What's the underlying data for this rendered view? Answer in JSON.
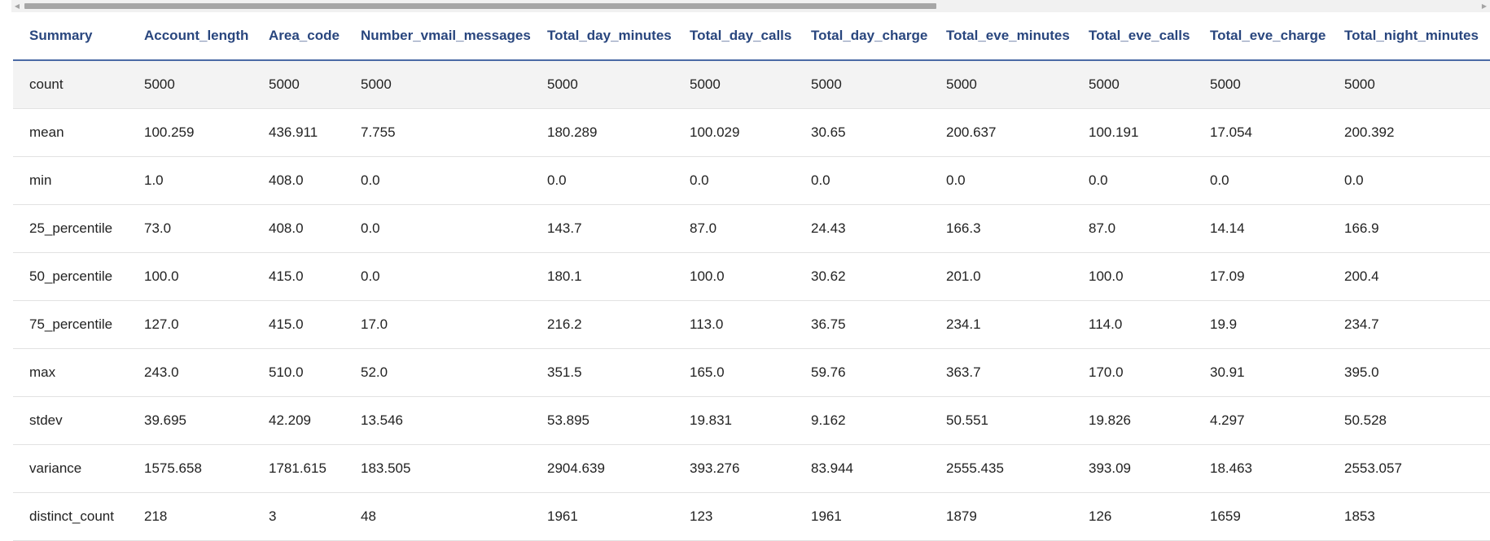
{
  "scrollbar": {
    "left_arrow_icon": "triangle-left",
    "right_arrow_icon": "triangle-right",
    "thumb_fraction": 0.62
  },
  "colors": {
    "header_text": "#29467e",
    "header_rule": "#4a6aa5",
    "first_row_bg": "#f3f3f3"
  },
  "table": {
    "headers": [
      "Summary",
      "Account_length",
      "Area_code",
      "Number_vmail_messages",
      "Total_day_minutes",
      "Total_day_calls",
      "Total_day_charge",
      "Total_eve_minutes",
      "Total_eve_calls",
      "Total_eve_charge",
      "Total_night_minutes"
    ],
    "rows": [
      [
        "count",
        "5000",
        "5000",
        "5000",
        "5000",
        "5000",
        "5000",
        "5000",
        "5000",
        "5000",
        "5000"
      ],
      [
        "mean",
        "100.259",
        "436.911",
        "7.755",
        "180.289",
        "100.029",
        "30.65",
        "200.637",
        "100.191",
        "17.054",
        "200.392"
      ],
      [
        "min",
        "1.0",
        "408.0",
        "0.0",
        "0.0",
        "0.0",
        "0.0",
        "0.0",
        "0.0",
        "0.0",
        "0.0"
      ],
      [
        "25_percentile",
        "73.0",
        "408.0",
        "0.0",
        "143.7",
        "87.0",
        "24.43",
        "166.3",
        "87.0",
        "14.14",
        "166.9"
      ],
      [
        "50_percentile",
        "100.0",
        "415.0",
        "0.0",
        "180.1",
        "100.0",
        "30.62",
        "201.0",
        "100.0",
        "17.09",
        "200.4"
      ],
      [
        "75_percentile",
        "127.0",
        "415.0",
        "17.0",
        "216.2",
        "113.0",
        "36.75",
        "234.1",
        "114.0",
        "19.9",
        "234.7"
      ],
      [
        "max",
        "243.0",
        "510.0",
        "52.0",
        "351.5",
        "165.0",
        "59.76",
        "363.7",
        "170.0",
        "30.91",
        "395.0"
      ],
      [
        "stdev",
        "39.695",
        "42.209",
        "13.546",
        "53.895",
        "19.831",
        "9.162",
        "50.551",
        "19.826",
        "4.297",
        "50.528"
      ],
      [
        "variance",
        "1575.658",
        "1781.615",
        "183.505",
        "2904.639",
        "393.276",
        "83.944",
        "2555.435",
        "393.09",
        "18.463",
        "2553.057"
      ],
      [
        "distinct_count",
        "218",
        "3",
        "48",
        "1961",
        "123",
        "1961",
        "1879",
        "126",
        "1659",
        "1853"
      ]
    ]
  }
}
